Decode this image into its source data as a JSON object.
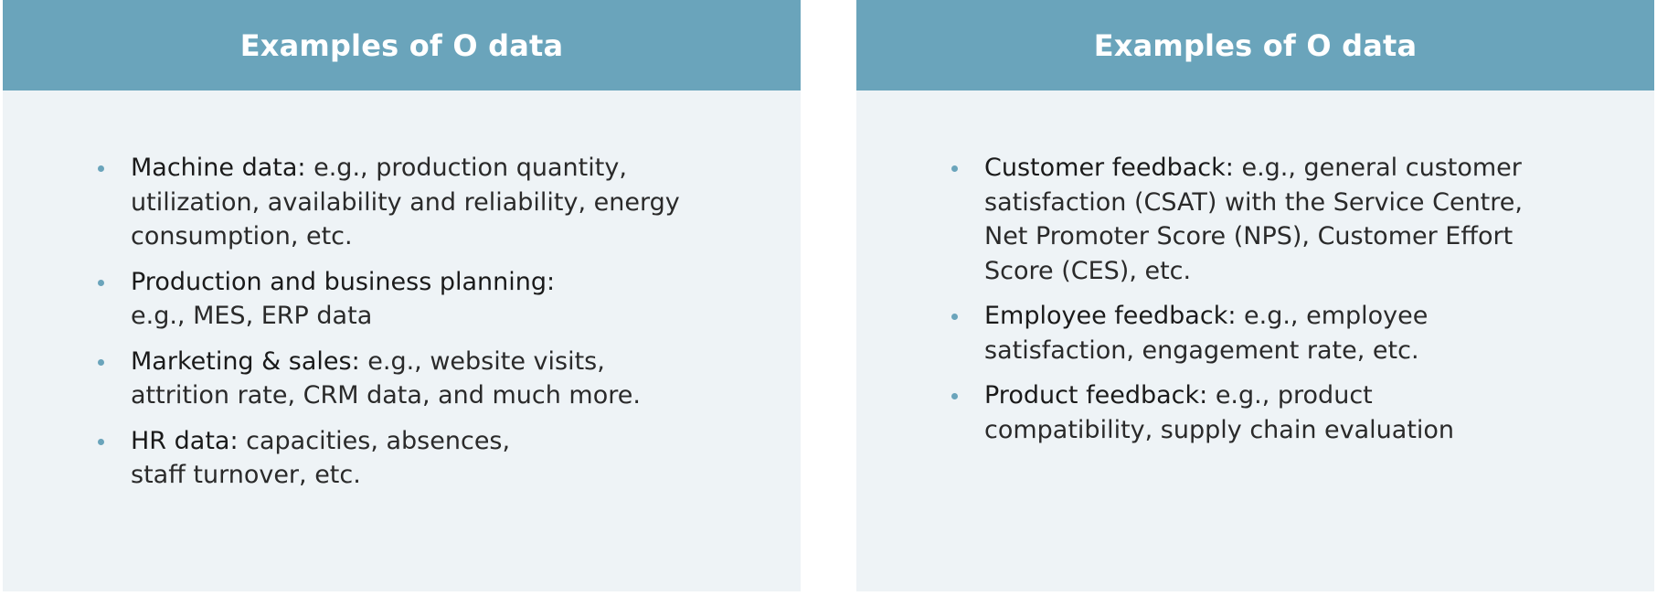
{
  "colors": {
    "header_bg": "#6aa4bb",
    "panel_bg": "#eef3f6",
    "bullet": "#6aa4bb",
    "text": "#2a2a2a"
  },
  "panels": [
    {
      "title": "Examples of O data",
      "items": [
        {
          "term": "Machine data:",
          "lines": [
            " e.g., production quantity,",
            "utilization, availability and reliability, energy",
            "consumption, etc."
          ]
        },
        {
          "term": "Production and business planning:",
          "lines": [
            "",
            "e.g., MES, ERP data"
          ]
        },
        {
          "term": "Marketing & sales:",
          "lines": [
            " e.g., website visits,",
            "attrition rate, CRM data, and much more."
          ]
        },
        {
          "term": "HR data:",
          "lines": [
            " capacities, absences,",
            "staff turnover, etc."
          ]
        }
      ]
    },
    {
      "title": "Examples of O data",
      "items": [
        {
          "term": "Customer feedback:",
          "lines": [
            " e.g., general customer",
            "satisfaction (CSAT) with the Service Centre,",
            "Net Promoter Score (NPS), Customer Effort",
            "Score (CES), etc."
          ]
        },
        {
          "term": "Employee feedback:",
          "lines": [
            " e.g., employee",
            "satisfaction, engagement rate, etc."
          ]
        },
        {
          "term": "Product feedback:",
          "lines": [
            " e.g., product",
            "compatibility, supply chain evaluation"
          ]
        }
      ]
    }
  ]
}
